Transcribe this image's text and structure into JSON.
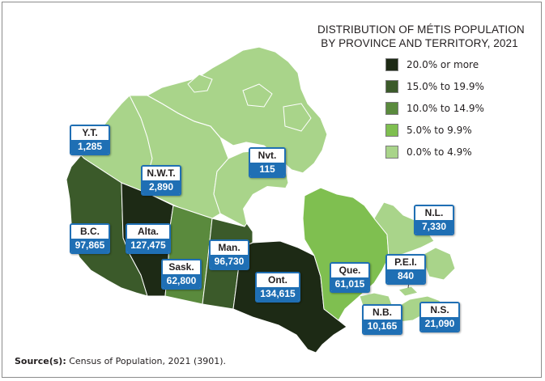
{
  "title_lines": [
    "DISTRIBUTION OF MÉTIS POPULATION",
    "BY PROVINCE AND TERRITORY, 2021"
  ],
  "legend": [
    {
      "label": "20.0% or more",
      "color": "#1d2a15"
    },
    {
      "label": "15.0% to 19.9%",
      "color": "#3b5a2a"
    },
    {
      "label": "10.0% to 14.9%",
      "color": "#5a8a3d"
    },
    {
      "label": "5.0% to 9.9%",
      "color": "#7fbf50"
    },
    {
      "label": "0.0% to 4.9%",
      "color": "#a9d48a"
    }
  ],
  "regions": {
    "yt": {
      "name": "Y.T.",
      "value": "1,285"
    },
    "nwt": {
      "name": "N.W.T.",
      "value": "2,890"
    },
    "nvt": {
      "name": "Nvt.",
      "value": "115"
    },
    "bc": {
      "name": "B.C.",
      "value": "97,865"
    },
    "alta": {
      "name": "Alta.",
      "value": "127,475"
    },
    "sask": {
      "name": "Sask.",
      "value": "62,800"
    },
    "man": {
      "name": "Man.",
      "value": "96,730"
    },
    "ont": {
      "name": "Ont.",
      "value": "134,615"
    },
    "que": {
      "name": "Que.",
      "value": "61,015"
    },
    "nl": {
      "name": "N.L.",
      "value": "7,330"
    },
    "pei": {
      "name": "P.E.I.",
      "value": "840"
    },
    "nb": {
      "name": "N.B.",
      "value": "10,165"
    },
    "ns": {
      "name": "N.S.",
      "value": "21,090"
    }
  },
  "source": {
    "label": "Source(s):",
    "text": " Census of Population, 2021 (3901)."
  }
}
